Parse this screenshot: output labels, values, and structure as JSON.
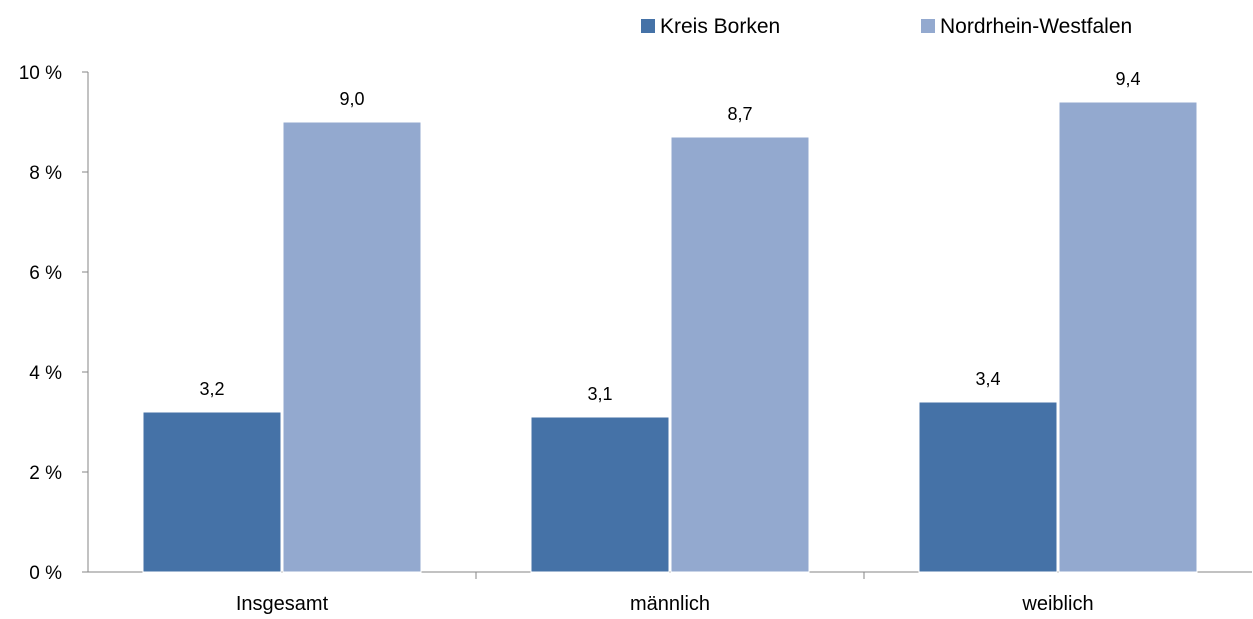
{
  "chart_data": {
    "type": "bar",
    "categories": [
      "Insgesamt",
      "männlich",
      "weiblich"
    ],
    "series": [
      {
        "name": "Kreis Borken",
        "values": [
          3.2,
          3.1,
          3.4
        ],
        "labels": [
          "3,2",
          "3,1",
          "3,4"
        ],
        "color": "#4572A7"
      },
      {
        "name": "Nordrhein-Westfalen",
        "values": [
          9.0,
          8.7,
          9.4
        ],
        "labels": [
          "9,0",
          "8,7",
          "9,4"
        ],
        "color": "#93A9CF"
      }
    ],
    "ylim": [
      0,
      10
    ],
    "yticks": [
      0,
      2,
      4,
      6,
      8,
      10
    ],
    "ytick_labels": [
      "0 %",
      "2 %",
      "4 %",
      "6 %",
      "8 %",
      "10 %"
    ],
    "legend_position": "top-right",
    "grid": false
  }
}
